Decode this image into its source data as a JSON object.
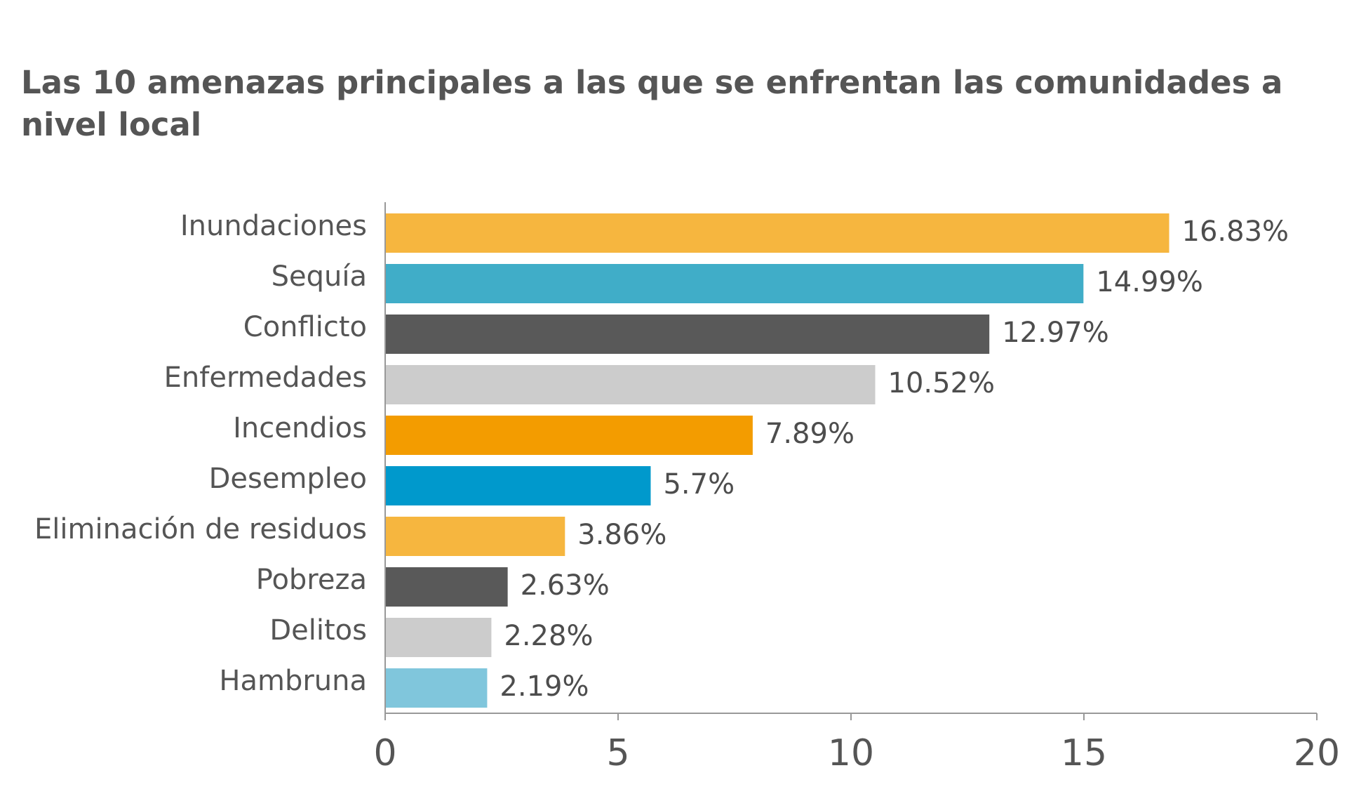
{
  "chart_data": {
    "type": "bar",
    "orientation": "horizontal",
    "title": "Las 10 amenazas principales a las que se enfrentan las comunidades a nivel local",
    "categories": [
      "Inundaciones",
      "Sequía",
      "Conflicto",
      "Enfermedades",
      "Incendios",
      "Desempleo",
      "Eliminación de residuos",
      "Pobreza",
      "Delitos",
      "Hambruna"
    ],
    "values": [
      16.83,
      14.99,
      12.97,
      10.52,
      7.89,
      5.7,
      3.86,
      2.63,
      2.28,
      2.19
    ],
    "value_labels": [
      "16.83%",
      "14.99%",
      "12.97%",
      "10.52%",
      "7.89%",
      "5.7%",
      "3.86%",
      "2.63%",
      "2.28%",
      "2.19%"
    ],
    "bar_colors": [
      "#f6b63f",
      "#40adc8",
      "#595959",
      "#cccccc",
      "#f39c00",
      "#0099cc",
      "#f6b63f",
      "#595959",
      "#cccccc",
      "#80c6dc"
    ],
    "xlim": [
      0,
      20
    ],
    "xticks": [
      0,
      5,
      10,
      15,
      20
    ],
    "xtick_labels": [
      "0",
      "5",
      "10",
      "15",
      "20"
    ],
    "xlabel": "",
    "ylabel": "",
    "grid": false,
    "legend": "none"
  }
}
